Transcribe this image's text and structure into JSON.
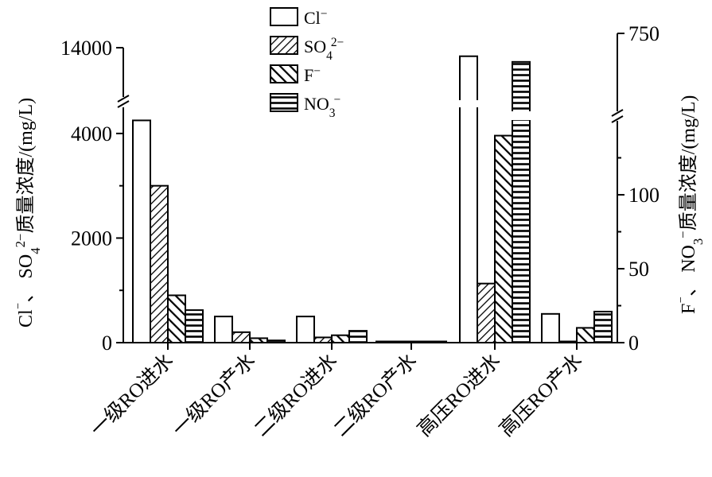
{
  "chart_data": {
    "type": "bar",
    "categories": [
      "一级RO进水",
      "一级RO产水",
      "二级RO进水",
      "二级RO产水",
      "高压RO进水",
      "高压RO产水"
    ],
    "series": [
      {
        "name": "Cl⁻",
        "axis": "left",
        "pattern": "blank",
        "values": [
          4250,
          500,
          500,
          20,
          12500,
          550
        ]
      },
      {
        "name": "SO₄²⁻",
        "axis": "left",
        "pattern": "diag-fine",
        "values": [
          3000,
          200,
          100,
          5,
          1130,
          10
        ]
      },
      {
        "name": "F⁻",
        "axis": "right",
        "pattern": "diag-thick",
        "values": [
          32,
          3,
          5,
          0,
          140,
          10
        ]
      },
      {
        "name": "NO₃⁻",
        "axis": "right",
        "pattern": "horizontal",
        "values": [
          22,
          1.5,
          8,
          0.5,
          500,
          21
        ]
      }
    ],
    "left_axis": {
      "label_parts": [
        "Cl",
        "⁻",
        "、 SO",
        "4",
        "2−",
        "质量浓度/(mg/L)"
      ],
      "ticks": [
        "0",
        "2000",
        "4000",
        "14000"
      ],
      "tick_values": [
        0,
        2000,
        4000,
        14000
      ],
      "break": {
        "lower": [
          0,
          4500
        ],
        "upper_top": 14000
      }
    },
    "right_axis": {
      "label_parts": [
        "F",
        "⁻",
        "、 NO",
        "3",
        "−",
        "质量浓度/(mg/L)"
      ],
      "ticks": [
        "0",
        "50",
        "100",
        "750"
      ],
      "tick_values": [
        0,
        50,
        100,
        750
      ],
      "break": {
        "lower": [
          0,
          150
        ],
        "upper_top": 750
      }
    },
    "legend": {
      "placement": "top-center",
      "entries": [
        "Cl⁻",
        "SO₄²⁻",
        "F⁻",
        "NO₃⁻"
      ],
      "label_parts": [
        [
          "Cl",
          "⁻",
          ""
        ],
        [
          "SO",
          "4",
          "2−"
        ],
        [
          "F",
          "⁻",
          ""
        ],
        [
          "NO",
          "3",
          "−"
        ]
      ]
    },
    "grid": false
  }
}
